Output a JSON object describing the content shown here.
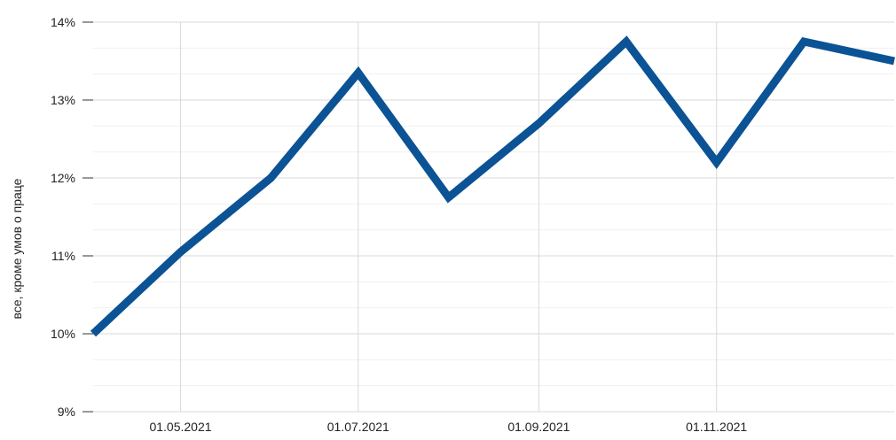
{
  "chart_data": {
    "type": "line",
    "title": "",
    "xlabel": "",
    "ylabel": "все, кроме умов о праце",
    "x": [
      "2021-04-01",
      "2021-05-01",
      "2021-06-01",
      "2021-07-01",
      "2021-08-01",
      "2021-09-01",
      "2021-10-01",
      "2021-11-01",
      "2021-12-01",
      "2022-01-01"
    ],
    "series": [
      {
        "name": "",
        "color": "#0b5394",
        "values": [
          10.0,
          11.05,
          12.0,
          13.35,
          11.75,
          12.7,
          13.75,
          12.2,
          13.75,
          13.5
        ]
      }
    ],
    "ylim": [
      9,
      14
    ],
    "yticks": [
      9,
      10,
      11,
      12,
      13,
      14
    ],
    "ytick_labels": [
      "9%",
      "10%",
      "11%",
      "12%",
      "13%",
      "14%"
    ],
    "xticks": [
      "2021-05-01",
      "2021-07-01",
      "2021-09-01",
      "2021-11-01"
    ],
    "xtick_labels": [
      "01.05.2021",
      "01.07.2021",
      "01.09.2021",
      "01.11.2021"
    ],
    "grid": true
  }
}
